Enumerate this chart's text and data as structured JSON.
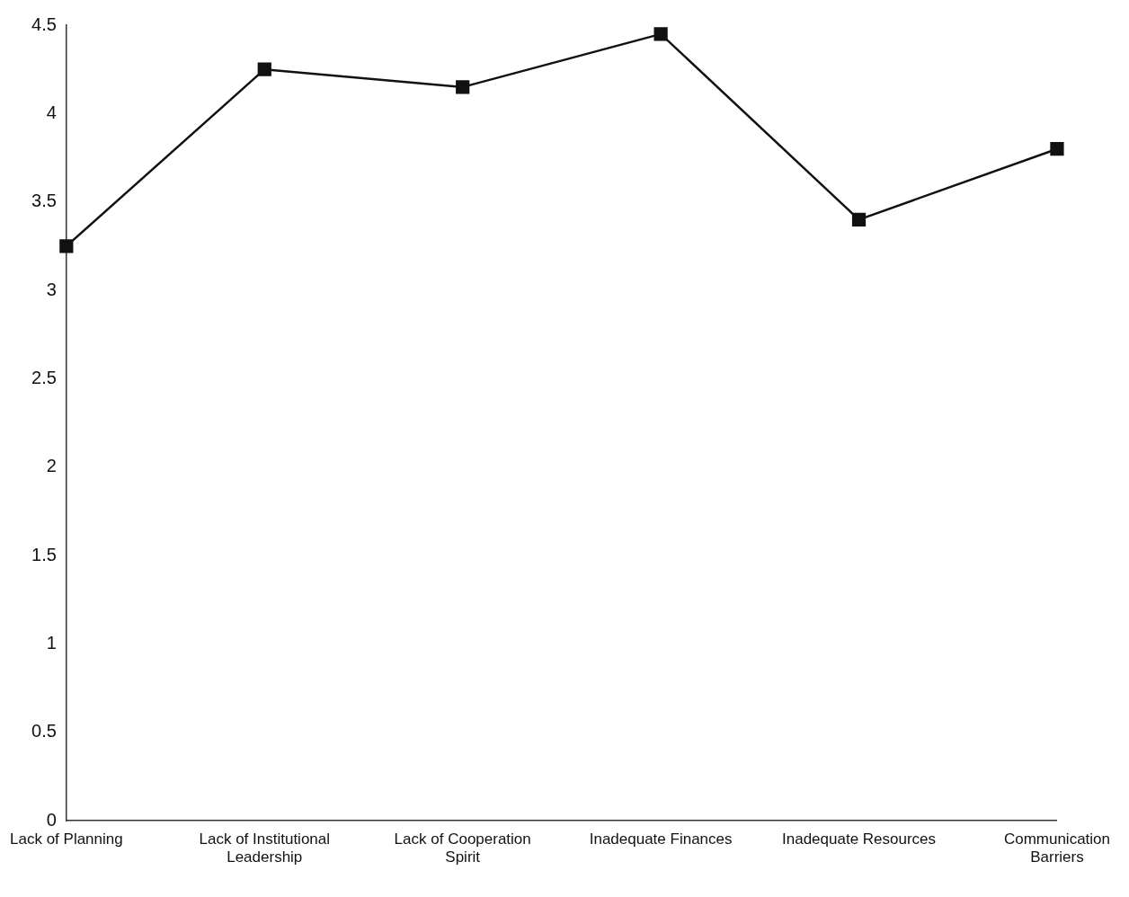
{
  "chart_data": {
    "type": "line",
    "categories": [
      "Lack of Planning",
      "Lack of Institutional Leadership",
      "Lack of Cooperation Spirit",
      "Inadequate Finances",
      "Inadequate Resources",
      "Communication Barriers"
    ],
    "series": [
      {
        "color": "#111111",
        "values": [
          3.25,
          4.25,
          4.15,
          4.45,
          3.4,
          3.8
        ]
      }
    ],
    "ylim": [
      0,
      4.5
    ],
    "yticks": [
      0,
      0.5,
      1,
      1.5,
      2,
      2.5,
      3,
      3.5,
      4,
      4.5
    ],
    "grid": false,
    "legend": false,
    "marker": "square",
    "line_style": "solid"
  }
}
